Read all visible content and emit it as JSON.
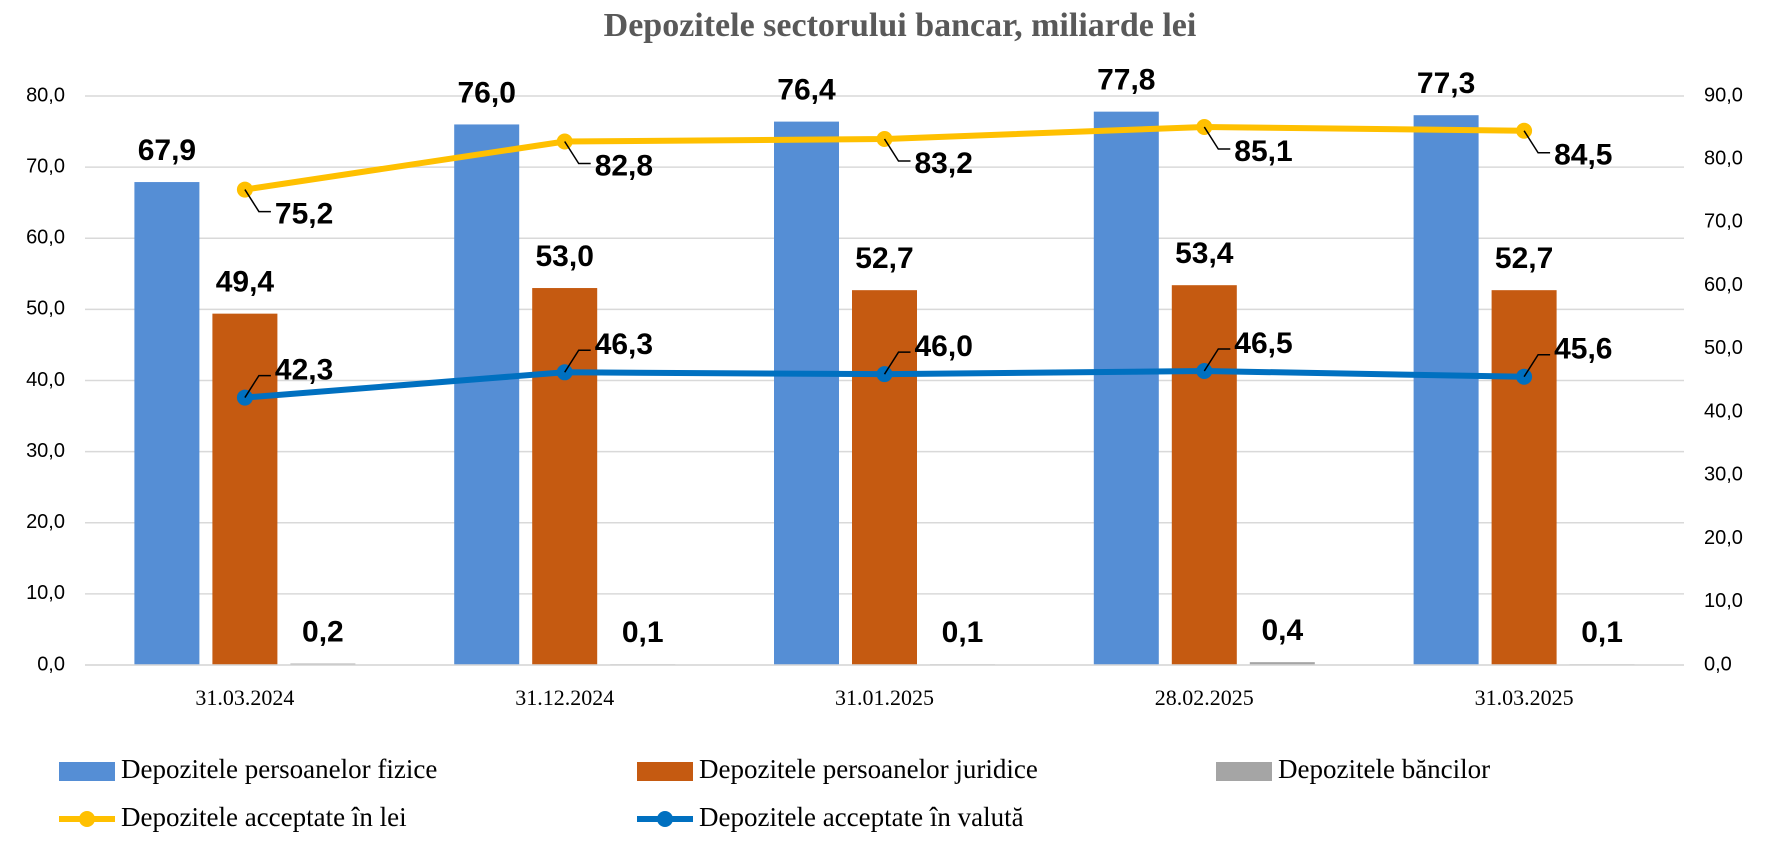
{
  "chart_data": {
    "type": "bar",
    "title": "Depozitele sectorului bancar, miliarde lei",
    "categories": [
      "31.03.2024",
      "31.12.2024",
      "31.01.2025",
      "28.02.2025",
      "31.03.2025"
    ],
    "series": [
      {
        "name": "Depozitele persoanelor fizice",
        "type": "bar",
        "color": "#558ed5",
        "values": [
          67.9,
          76.0,
          76.4,
          77.8,
          77.3
        ],
        "value_labels": [
          "67,9",
          "76,0",
          "76,4",
          "77,8",
          "77,3"
        ]
      },
      {
        "name": "Depozitele persoanelor juridice",
        "type": "bar",
        "color": "#c55a11",
        "values": [
          49.4,
          53.0,
          52.7,
          53.4,
          52.7
        ],
        "value_labels": [
          "49,4",
          "53,0",
          "52,7",
          "53,4",
          "52,7"
        ]
      },
      {
        "name": "Depozitele băncilor",
        "type": "bar",
        "color": "#a5a5a5",
        "values": [
          0.2,
          0.1,
          0.1,
          0.4,
          0.1
        ],
        "value_labels": [
          "0,2",
          "0,1",
          "0,1",
          "0,4",
          "0,1"
        ]
      },
      {
        "name": "Depozitele acceptate în lei",
        "type": "line",
        "axis": "y2",
        "color": "#ffc000",
        "values": [
          75.2,
          82.8,
          83.2,
          85.1,
          84.5
        ],
        "value_labels": [
          "75,2",
          "82,8",
          "83,2",
          "85,1",
          "84,5"
        ]
      },
      {
        "name": "Depozitele acceptate în valută",
        "type": "line",
        "axis": "y2",
        "color": "#0070c0",
        "values": [
          42.3,
          46.3,
          46.0,
          46.5,
          45.6
        ],
        "value_labels": [
          "42,3",
          "46,3",
          "46,0",
          "46,5",
          "45,6"
        ]
      }
    ],
    "ylim": [
      0,
      80
    ],
    "yticks": [
      {
        "value": 0,
        "label": "0,0"
      },
      {
        "value": 10,
        "label": "10,0"
      },
      {
        "value": 20,
        "label": "20,0"
      },
      {
        "value": 30,
        "label": "30,0"
      },
      {
        "value": 40,
        "label": "40,0"
      },
      {
        "value": 50,
        "label": "50,0"
      },
      {
        "value": 60,
        "label": "60,0"
      },
      {
        "value": 70,
        "label": "70,0"
      },
      {
        "value": 80,
        "label": "80,0"
      }
    ],
    "y2lim": [
      0,
      90
    ],
    "y2ticks": [
      {
        "value": 0,
        "label": "0,0"
      },
      {
        "value": 10,
        "label": "10,0"
      },
      {
        "value": 20,
        "label": "20,0"
      },
      {
        "value": 30,
        "label": "30,0"
      },
      {
        "value": 40,
        "label": "40,0"
      },
      {
        "value": 50,
        "label": "50,0"
      },
      {
        "value": 60,
        "label": "60,0"
      },
      {
        "value": 70,
        "label": "70,0"
      },
      {
        "value": 80,
        "label": "80,0"
      },
      {
        "value": 90,
        "label": "90,0"
      }
    ],
    "grid": true
  }
}
